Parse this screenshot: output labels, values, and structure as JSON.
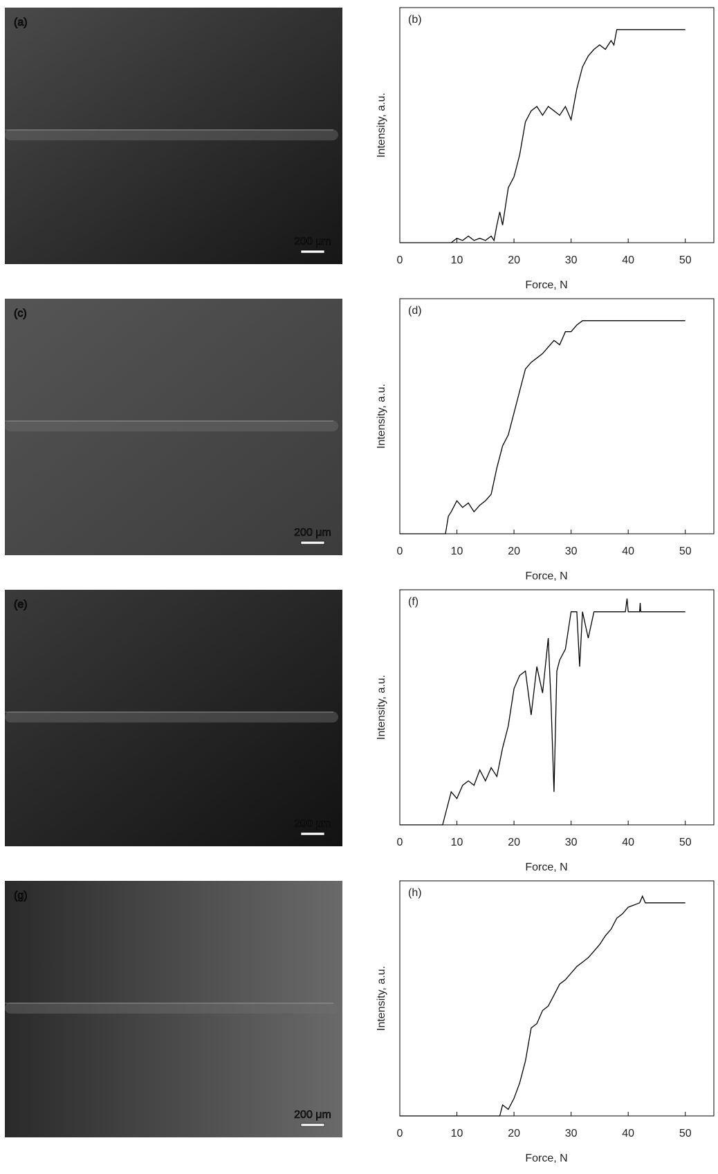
{
  "images": [
    {
      "label": "(a)",
      "scale_bar": "200 μm"
    },
    {
      "label": "(c)",
      "scale_bar": "200 μm"
    },
    {
      "label": "(e)",
      "scale_bar": "200 μm"
    },
    {
      "label": "(g)",
      "scale_bar": "200 μm"
    }
  ],
  "chart_data": [
    {
      "type": "line",
      "title": "(b)",
      "x_label": "Force, N",
      "y_label": "Intensity, a.u.",
      "xlim": [
        0,
        55
      ],
      "ylim": [
        0,
        107
      ],
      "xticks": [
        0,
        10,
        20,
        30,
        40,
        50
      ],
      "color": "#000000",
      "x": [
        0,
        9,
        10,
        11,
        12,
        13,
        14,
        15,
        16,
        16.5,
        17,
        17.5,
        18,
        19,
        20,
        21,
        22,
        23,
        24,
        25,
        26,
        27,
        28,
        29,
        30,
        31,
        32,
        33,
        34,
        35,
        36,
        37,
        37.5,
        38,
        50
      ],
      "values": [
        0,
        0,
        2,
        1,
        3,
        1,
        2,
        1,
        3,
        1,
        8,
        14,
        8,
        25,
        30,
        40,
        55,
        60,
        62,
        58,
        62,
        60,
        58,
        62,
        56,
        70,
        80,
        85,
        88,
        90,
        88,
        92,
        90,
        97,
        97
      ]
    },
    {
      "type": "line",
      "title": "(d)",
      "x_label": "Force, N",
      "y_label": "Intensity, a.u.",
      "xlim": [
        0,
        55
      ],
      "ylim": [
        0,
        107
      ],
      "xticks": [
        0,
        10,
        20,
        30,
        40,
        50
      ],
      "color": "#000000",
      "x": [
        0,
        8,
        8.5,
        9,
        10,
        11,
        12,
        13,
        14,
        15,
        16,
        17,
        18,
        19,
        20,
        21,
        22,
        23,
        24,
        25,
        26,
        27,
        28,
        29,
        30,
        31,
        32,
        50
      ],
      "values": [
        0,
        0,
        8,
        10,
        15,
        12,
        14,
        10,
        13,
        15,
        18,
        30,
        40,
        45,
        55,
        65,
        75,
        78,
        80,
        82,
        85,
        88,
        86,
        92,
        92,
        95,
        97,
        97
      ]
    },
    {
      "type": "line",
      "title": "(f)",
      "x_label": "Force, N",
      "y_label": "Intensity, a.u.",
      "xlim": [
        0,
        55
      ],
      "ylim": [
        0,
        107
      ],
      "xticks": [
        0,
        10,
        20,
        30,
        40,
        50
      ],
      "color": "#000000",
      "x": [
        0,
        7.5,
        8,
        9,
        10,
        11,
        12,
        13,
        14,
        15,
        16,
        17,
        18,
        19,
        20,
        21,
        22,
        23,
        24,
        25,
        26,
        26.5,
        27,
        27.5,
        28,
        29,
        30,
        31,
        31.5,
        32,
        33,
        34,
        39.5,
        39.8,
        40,
        42,
        42.1,
        42.2,
        50
      ],
      "values": [
        0,
        0,
        5,
        15,
        12,
        18,
        20,
        18,
        25,
        20,
        26,
        22,
        35,
        45,
        62,
        68,
        70,
        50,
        72,
        60,
        85,
        55,
        15,
        70,
        75,
        80,
        97,
        97,
        72,
        97,
        85,
        97,
        97,
        103,
        97,
        97,
        101,
        97,
        97
      ]
    },
    {
      "type": "line",
      "title": "(h)",
      "x_label": "Force, N",
      "y_label": "Intensity, a.u.",
      "xlim": [
        0,
        55
      ],
      "ylim": [
        0,
        107
      ],
      "xticks": [
        0,
        10,
        20,
        30,
        40,
        50
      ],
      "color": "#000000",
      "x": [
        0,
        17.5,
        18,
        19,
        20,
        21,
        22,
        23,
        24,
        25,
        26,
        27,
        28,
        29,
        30,
        31,
        32,
        33,
        34,
        35,
        36,
        37,
        38,
        39,
        40,
        41,
        42,
        42.5,
        43,
        50
      ],
      "values": [
        0,
        0,
        5,
        3,
        8,
        15,
        25,
        40,
        42,
        48,
        50,
        55,
        60,
        62,
        65,
        68,
        70,
        72,
        75,
        78,
        82,
        85,
        90,
        92,
        95,
        96,
        97,
        100,
        97,
        97
      ]
    }
  ]
}
